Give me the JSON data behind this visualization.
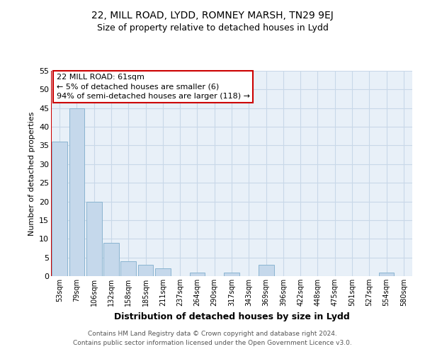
{
  "title1": "22, MILL ROAD, LYDD, ROMNEY MARSH, TN29 9EJ",
  "title2": "Size of property relative to detached houses in Lydd",
  "xlabel": "Distribution of detached houses by size in Lydd",
  "ylabel": "Number of detached properties",
  "bar_labels": [
    "53sqm",
    "79sqm",
    "106sqm",
    "132sqm",
    "158sqm",
    "185sqm",
    "211sqm",
    "237sqm",
    "264sqm",
    "290sqm",
    "317sqm",
    "343sqm",
    "369sqm",
    "396sqm",
    "422sqm",
    "448sqm",
    "475sqm",
    "501sqm",
    "527sqm",
    "554sqm",
    "580sqm"
  ],
  "bar_values": [
    36,
    45,
    20,
    9,
    4,
    3,
    2,
    0,
    1,
    0,
    1,
    0,
    3,
    0,
    0,
    0,
    0,
    0,
    0,
    1,
    0
  ],
  "bar_color": "#c5d8eb",
  "bar_edge_color": "#8ab4d0",
  "ylim": [
    0,
    55
  ],
  "yticks": [
    0,
    5,
    10,
    15,
    20,
    25,
    30,
    35,
    40,
    45,
    50,
    55
  ],
  "annotation_title": "22 MILL ROAD: 61sqm",
  "annotation_line1": "← 5% of detached houses are smaller (6)",
  "annotation_line2": "94% of semi-detached houses are larger (118) →",
  "annotation_box_facecolor": "white",
  "annotation_box_edgecolor": "#cc0000",
  "footer1": "Contains HM Land Registry data © Crown copyright and database right 2024.",
  "footer2": "Contains public sector information licensed under the Open Government Licence v3.0.",
  "grid_color": "#c8d8e8",
  "background_color": "#e8f0f8",
  "red_line_color": "#cc0000"
}
